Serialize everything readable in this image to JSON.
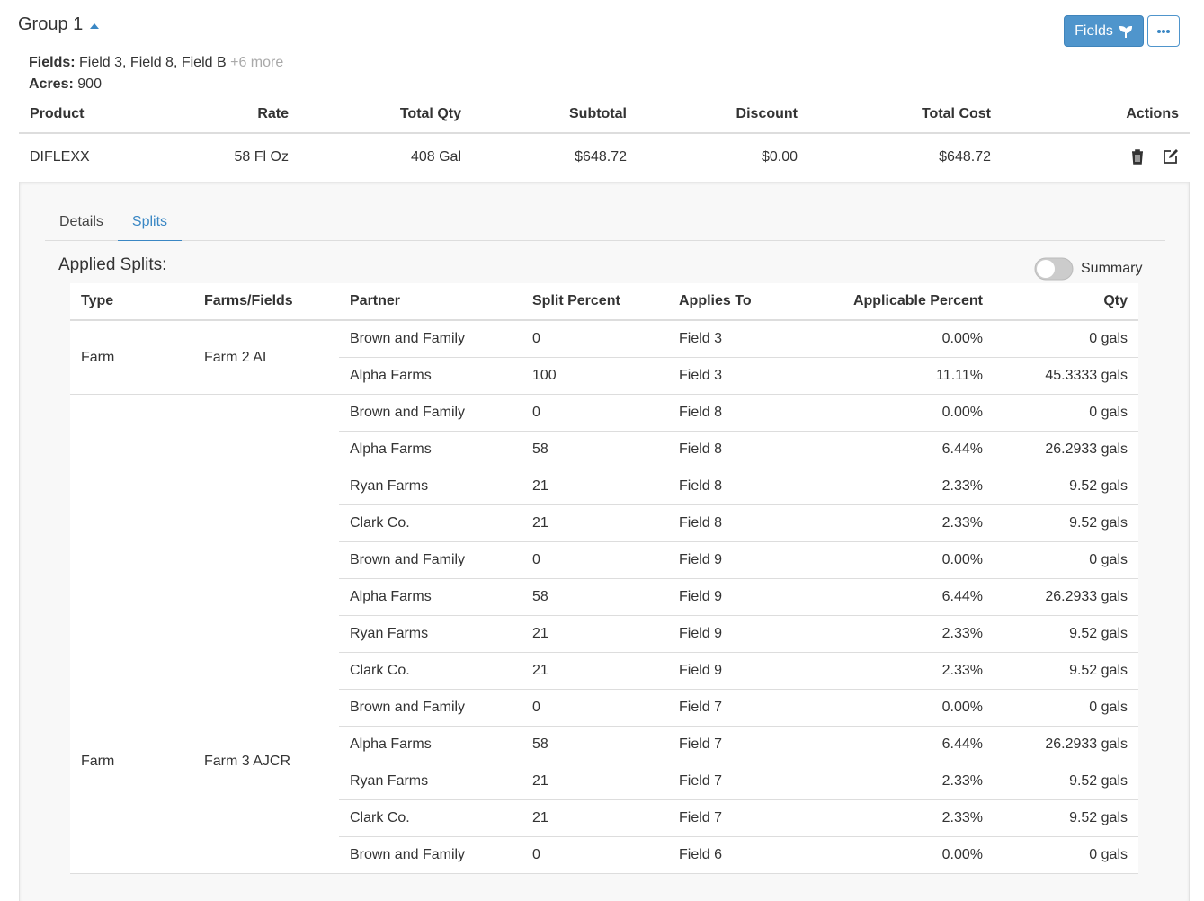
{
  "header": {
    "title": "Group 1",
    "fields_label": "Fields:",
    "fields": "Field 3, Field 8, Field B",
    "more": "+6 more",
    "acres_label": "Acres:",
    "acres": "900",
    "button": "Fields"
  },
  "product_table": {
    "columns": [
      "Product",
      "Rate",
      "Total Qty",
      "Subtotal",
      "Discount",
      "Total Cost",
      "Actions"
    ],
    "rows": [
      [
        "DIFLEXX",
        "58 Fl Oz",
        "408 Gal",
        "$648.72",
        "$0.00",
        "$648.72"
      ]
    ]
  },
  "tabs": [
    "Details",
    "Splits"
  ],
  "splits": {
    "title": "Applied Splits:",
    "toggle_label": "Summary",
    "columns": [
      "Type",
      "Farms/Fields",
      "Partner",
      "Split Percent",
      "Applies To",
      "Applicable Percent",
      "Qty"
    ],
    "groups": [
      {
        "type": "Farm",
        "farm": "Farm 2 AI",
        "rows": [
          [
            "Brown and Family",
            "0",
            "Field 3",
            "0.00%",
            "0 gals"
          ],
          [
            "Alpha Farms",
            "100",
            "Field 3",
            "11.11%",
            "45.3333 gals"
          ]
        ]
      },
      {
        "type": "Farm",
        "farm": "Farm 3 AJCR",
        "rows": [
          [
            "Brown and Family",
            "0",
            "Field 8",
            "0.00%",
            "0 gals"
          ],
          [
            "Alpha Farms",
            "58",
            "Field 8",
            "6.44%",
            "26.2933 gals"
          ],
          [
            "Ryan Farms",
            "21",
            "Field 8",
            "2.33%",
            "9.52 gals"
          ],
          [
            "Clark Co.",
            "21",
            "Field 8",
            "2.33%",
            "9.52 gals"
          ],
          [
            "Brown and Family",
            "0",
            "Field 9",
            "0.00%",
            "0 gals"
          ],
          [
            "Alpha Farms",
            "58",
            "Field 9",
            "6.44%",
            "26.2933 gals"
          ],
          [
            "Ryan Farms",
            "21",
            "Field 9",
            "2.33%",
            "9.52 gals"
          ],
          [
            "Clark Co.",
            "21",
            "Field 9",
            "2.33%",
            "9.52 gals"
          ],
          [
            "Brown and Family",
            "0",
            "Field 7",
            "0.00%",
            "0 gals"
          ],
          [
            "Alpha Farms",
            "58",
            "Field 7",
            "6.44%",
            "26.2933 gals"
          ],
          [
            "Ryan Farms",
            "21",
            "Field 7",
            "2.33%",
            "9.52 gals"
          ],
          [
            "Clark Co.",
            "21",
            "Field 7",
            "2.33%",
            "9.52 gals"
          ],
          [
            "Brown and Family",
            "0",
            "Field 6",
            "0.00%",
            "0 gals"
          ]
        ]
      }
    ]
  }
}
